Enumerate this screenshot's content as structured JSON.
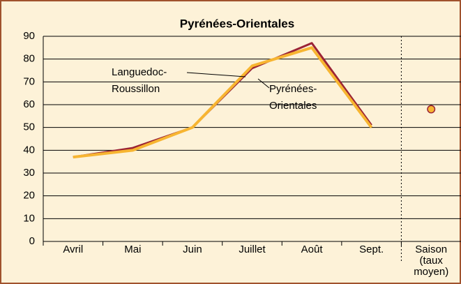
{
  "chart_data": {
    "type": "line",
    "title": "Pyrénées-Orientales",
    "categories": [
      "Avril",
      "Mai",
      "Juin",
      "Juillet",
      "Août",
      "Sept.",
      "Saison (taux moyen)"
    ],
    "series": [
      {
        "name": "Languedoc-Roussillon",
        "color": "#9b2335",
        "values": [
          37,
          41,
          50,
          76,
          87,
          51,
          58
        ]
      },
      {
        "name": "Pyrénées-Orientales",
        "color": "#f7b531",
        "values": [
          37,
          40,
          50,
          77,
          85,
          50,
          58
        ]
      }
    ],
    "ylim": [
      0,
      90
    ],
    "yticks": [
      0,
      10,
      20,
      30,
      40,
      50,
      60,
      70,
      80,
      90
    ],
    "grid": true
  }
}
